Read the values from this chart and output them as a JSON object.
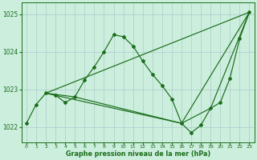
{
  "bg_color": "#cceedd",
  "grid_color": "#aacccc",
  "line_color": "#1a6e1a",
  "xlabel": "Graphe pression niveau de la mer (hPa)",
  "xlim": [
    -0.5,
    23.5
  ],
  "ylim": [
    1021.6,
    1025.3
  ],
  "yticks": [
    1022,
    1023,
    1024,
    1025
  ],
  "xticks": [
    0,
    1,
    2,
    3,
    4,
    5,
    6,
    7,
    8,
    9,
    10,
    11,
    12,
    13,
    14,
    15,
    16,
    17,
    18,
    19,
    20,
    21,
    22,
    23
  ],
  "series_main": {
    "x": [
      0,
      1,
      2,
      3,
      4,
      5,
      6,
      7,
      8,
      9,
      10,
      11,
      12,
      13,
      14,
      15,
      16,
      17,
      18,
      19,
      20,
      21,
      22,
      23
    ],
    "y": [
      1022.1,
      1022.6,
      1022.9,
      1022.85,
      1022.65,
      1022.8,
      1023.25,
      1023.6,
      1024.0,
      1024.45,
      1024.4,
      1024.15,
      1023.75,
      1023.4,
      1023.1,
      1022.75,
      1022.1,
      1021.85,
      1022.05,
      1022.5,
      1022.65,
      1023.3,
      1024.35,
      1025.05
    ]
  },
  "series_lines": [
    {
      "x": [
        2,
        23
      ],
      "y": [
        1022.9,
        1025.05
      ]
    },
    {
      "x": [
        2,
        16,
        23
      ],
      "y": [
        1022.9,
        1022.1,
        1025.05
      ]
    },
    {
      "x": [
        2,
        5,
        16,
        19,
        23
      ],
      "y": [
        1022.9,
        1022.8,
        1022.1,
        1022.5,
        1025.05
      ]
    }
  ]
}
